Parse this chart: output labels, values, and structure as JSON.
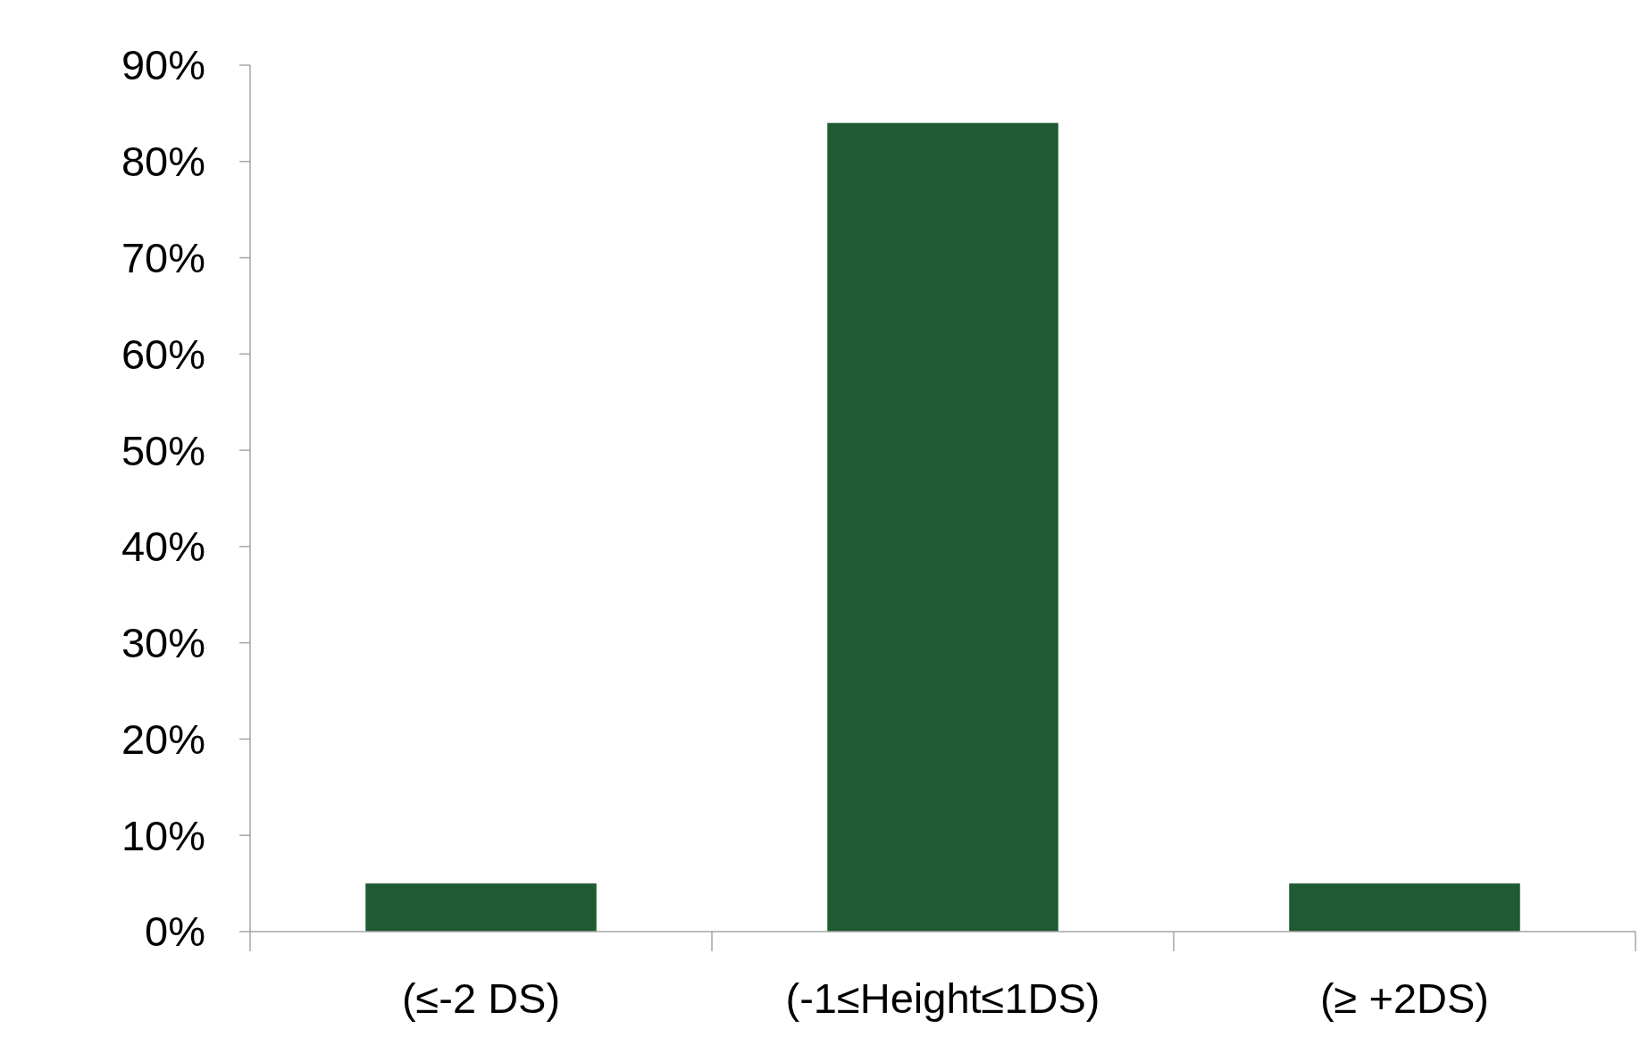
{
  "chart_data": {
    "type": "bar",
    "categories": [
      "(≤-2 DS)",
      "(-1≤Height≤1DS)",
      "(≥ +2DS)"
    ],
    "values": [
      5,
      84,
      5
    ],
    "color": "#1e5a32",
    "ylim": [
      0,
      90
    ],
    "yticks": [
      {
        "value": 0,
        "label": "0%"
      },
      {
        "value": 10,
        "label": "10%"
      },
      {
        "value": 20,
        "label": "20%"
      },
      {
        "value": 30,
        "label": "30%"
      },
      {
        "value": 40,
        "label": "40%"
      },
      {
        "value": 50,
        "label": "50%"
      },
      {
        "value": 60,
        "label": "60%"
      },
      {
        "value": 70,
        "label": "70%"
      },
      {
        "value": 80,
        "label": "80%"
      },
      {
        "value": 90,
        "label": "90%"
      }
    ],
    "grid": false
  }
}
